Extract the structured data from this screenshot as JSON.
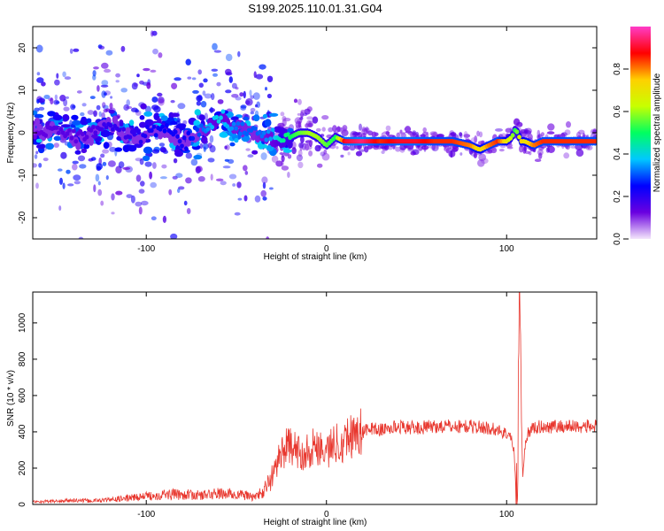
{
  "title": "S199.2025.110.01.31.G04",
  "chart_data": [
    {
      "type": "heatmap",
      "xlabel": "Height of straight line (km)",
      "ylabel": "Frequency (Hz)",
      "xlim": [
        -163,
        150
      ],
      "ylim": [
        -25,
        25
      ],
      "xticks": [
        -100,
        0,
        100
      ],
      "yticks": [
        -20,
        -10,
        0,
        10,
        20
      ],
      "colorbar": {
        "label": "Normalized spectral amplitude",
        "ticks": [
          0.0,
          0.2,
          0.4,
          0.6,
          0.8
        ],
        "range": [
          0,
          1
        ],
        "colors": [
          "#f4e6fb",
          "#6a00e0",
          "#0000ff",
          "#00c8ff",
          "#00ff60",
          "#c8ff00",
          "#ffd000",
          "#ff0000",
          "#ff3cc8"
        ]
      },
      "ridge": {
        "x": [
          -163,
          -150,
          -140,
          -130,
          -120,
          -110,
          -100,
          -90,
          -80,
          -70,
          -60,
          -50,
          -40,
          -30,
          -25,
          -20,
          -15,
          -10,
          -5,
          0,
          5,
          10,
          20,
          30,
          40,
          50,
          60,
          70,
          80,
          85,
          90,
          95,
          100,
          103,
          105,
          108,
          110,
          115,
          120,
          130,
          140,
          150
        ],
        "y": [
          0,
          1,
          -1,
          0,
          2,
          -1,
          0,
          1,
          -2,
          0,
          3,
          1,
          0,
          -1,
          -2,
          -1,
          0,
          0,
          -1,
          -3,
          -1,
          -2,
          -2,
          -2,
          -2,
          -2,
          -2,
          -2,
          -3,
          -4,
          -3,
          -2,
          -2,
          -1,
          1,
          -2,
          -2,
          -3,
          -2,
          -2,
          -2,
          -2
        ],
        "amplitude": [
          0.12,
          0.15,
          0.14,
          0.15,
          0.2,
          0.18,
          0.22,
          0.25,
          0.22,
          0.3,
          0.4,
          0.32,
          0.3,
          0.35,
          0.45,
          0.5,
          0.55,
          0.6,
          0.6,
          0.55,
          0.5,
          0.9,
          0.95,
          0.85,
          0.9,
          0.9,
          0.85,
          0.85,
          0.8,
          0.7,
          0.8,
          0.85,
          0.7,
          0.6,
          0.5,
          0.75,
          0.7,
          0.8,
          0.85,
          0.85,
          0.85,
          0.85
        ]
      }
    },
    {
      "type": "line",
      "xlabel": "Height of straight line (km)",
      "ylabel": "SNR (10 * v/v)",
      "xlim": [
        -163,
        150
      ],
      "ylim": [
        0,
        1170
      ],
      "xticks": [
        -100,
        0,
        100
      ],
      "yticks": [
        0,
        200,
        400,
        600,
        800,
        1000
      ],
      "color": "#e8372e",
      "series": [
        {
          "x": [
            -163,
            -150,
            -140,
            -130,
            -120,
            -110,
            -100,
            -90,
            -80,
            -70,
            -60,
            -50,
            -45,
            -40,
            -35,
            -30,
            -25,
            -20,
            -15,
            -10,
            -5,
            0,
            5,
            10,
            15,
            20,
            25,
            30,
            40,
            50,
            60,
            70,
            80,
            90,
            95,
            100,
            102,
            104,
            105,
            106,
            107,
            108,
            109,
            110,
            112,
            115,
            120,
            130,
            140,
            150
          ],
          "values": [
            15,
            18,
            22,
            20,
            25,
            35,
            45,
            55,
            55,
            50,
            60,
            55,
            50,
            40,
            70,
            150,
            300,
            320,
            280,
            300,
            330,
            290,
            340,
            360,
            390,
            400,
            420,
            410,
            430,
            420,
            430,
            430,
            430,
            420,
            410,
            390,
            380,
            300,
            120,
            40,
            1170,
            820,
            150,
            300,
            400,
            420,
            430,
            430,
            430,
            430
          ]
        }
      ]
    }
  ]
}
